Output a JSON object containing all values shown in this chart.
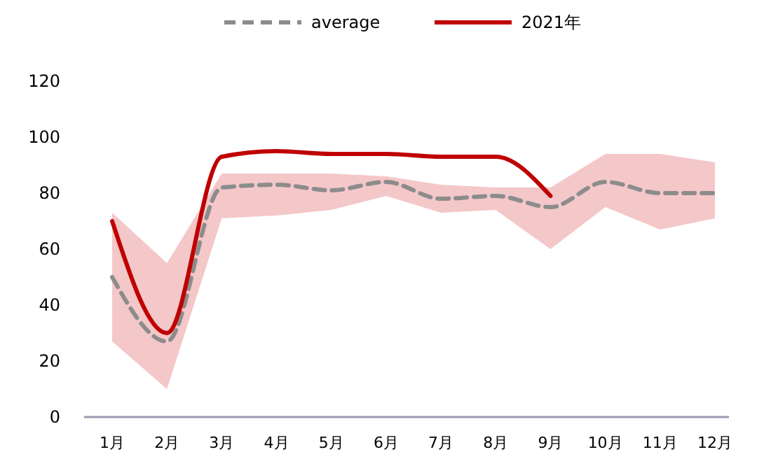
{
  "chart_data": {
    "type": "line",
    "categories": [
      "1月",
      "2月",
      "3月",
      "4月",
      "5月",
      "6月",
      "7月",
      "8月",
      "9月",
      "10月",
      "11月",
      "12月"
    ],
    "series": [
      {
        "name": "average",
        "color": "#8c8c8c",
        "line_style": "dashed",
        "values": [
          50,
          27,
          82,
          83,
          81,
          84,
          78,
          79,
          75,
          84,
          80,
          80
        ],
        "lower": [
          27,
          10,
          71,
          72,
          74,
          79,
          73,
          74,
          60,
          75,
          67,
          71
        ],
        "upper": [
          73,
          55,
          87,
          87,
          87,
          86,
          83,
          82,
          82,
          94,
          94,
          91
        ]
      },
      {
        "name": "2021年",
        "color": "#c00000",
        "line_style": "solid",
        "values": [
          70,
          30,
          93,
          95,
          94,
          94,
          93,
          93,
          79,
          null,
          null,
          null
        ]
      }
    ],
    "ylim": [
      0,
      120
    ],
    "yticks": [
      0,
      20,
      40,
      60,
      80,
      100,
      120
    ],
    "grid": false,
    "legend": "top",
    "marker": "none"
  }
}
